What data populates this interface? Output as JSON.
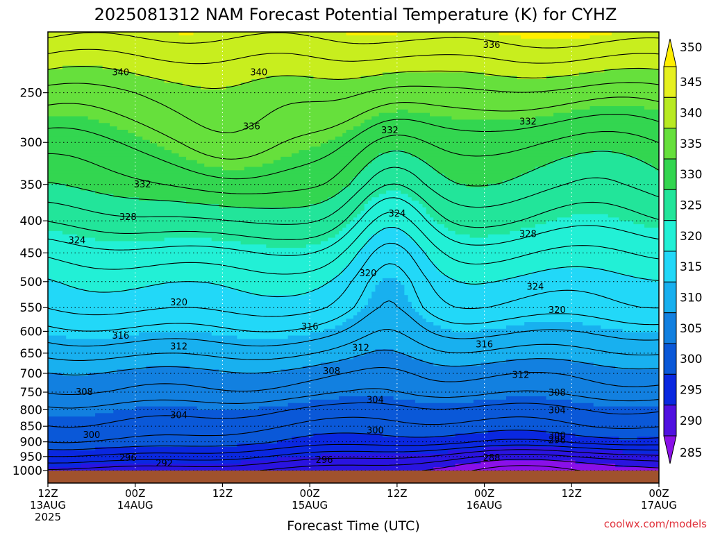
{
  "chart_data": {
    "type": "heatmap",
    "title": "2025081312 NAM Forecast Potential Temperature (K) for CYHZ",
    "xlabel": "Forecast Time (UTC)",
    "ylabel": "",
    "y_scale": "log-pressure",
    "ylim": [
      1000,
      200
    ],
    "y_ticks": [
      250,
      300,
      350,
      400,
      450,
      500,
      550,
      600,
      650,
      700,
      750,
      800,
      850,
      900,
      950,
      1000
    ],
    "x_ticks": [
      {
        "hours": 0,
        "line1": "12Z",
        "line2": "13AUG",
        "line3": "2025"
      },
      {
        "hours": 12,
        "line1": "00Z",
        "line2": "14AUG",
        "line3": ""
      },
      {
        "hours": 24,
        "line1": "12Z",
        "line2": "",
        "line3": ""
      },
      {
        "hours": 36,
        "line1": "00Z",
        "line2": "15AUG",
        "line3": ""
      },
      {
        "hours": 48,
        "line1": "12Z",
        "line2": "",
        "line3": ""
      },
      {
        "hours": 60,
        "line1": "00Z",
        "line2": "16AUG",
        "line3": ""
      },
      {
        "hours": 72,
        "line1": "12Z",
        "line2": "",
        "line3": ""
      },
      {
        "hours": 84,
        "line1": "00Z",
        "line2": "17AUG",
        "line3": ""
      }
    ],
    "xlim": [
      0,
      84
    ],
    "colorbar": {
      "levels": [
        350,
        345,
        340,
        335,
        330,
        325,
        320,
        315,
        310,
        305,
        300,
        295,
        290,
        285
      ],
      "colors": [
        "#ffee00",
        "#e6f020",
        "#b8ea22",
        "#66e03c",
        "#33d650",
        "#22e59a",
        "#22f0d6",
        "#22d8f8",
        "#18b0ef",
        "#1280e0",
        "#0a58d8",
        "#0a28e0",
        "#5010e0",
        "#8a10e8"
      ]
    },
    "fill_bands": [
      {
        "min": 345,
        "color": "#ffee00"
      },
      {
        "min": 340,
        "color": "#c8ee1e"
      },
      {
        "min": 335,
        "color": "#66e03c"
      },
      {
        "min": 330,
        "color": "#33d650"
      },
      {
        "min": 325,
        "color": "#22e59a"
      },
      {
        "min": 320,
        "color": "#22f0d6"
      },
      {
        "min": 315,
        "color": "#22d8f8"
      },
      {
        "min": 310,
        "color": "#18b0ef"
      },
      {
        "min": 305,
        "color": "#1280e0"
      },
      {
        "min": 300,
        "color": "#0a58d8"
      },
      {
        "min": 295,
        "color": "#0a28e0"
      },
      {
        "min": 290,
        "color": "#2a14e0"
      },
      {
        "min": 285,
        "color": "#8a10e8"
      }
    ],
    "contour_interval": 2,
    "theta_profile": [
      {
        "p": 1000,
        "theta": 292
      },
      {
        "p": 950,
        "theta": 296
      },
      {
        "p": 900,
        "theta": 300
      },
      {
        "p": 850,
        "theta": 302
      },
      {
        "p": 800,
        "theta": 304
      },
      {
        "p": 750,
        "theta": 307
      },
      {
        "p": 700,
        "theta": 309
      },
      {
        "p": 650,
        "theta": 312
      },
      {
        "p": 600,
        "theta": 315
      },
      {
        "p": 550,
        "theta": 318
      },
      {
        "p": 500,
        "theta": 320
      },
      {
        "p": 450,
        "theta": 323
      },
      {
        "p": 400,
        "theta": 327
      },
      {
        "p": 350,
        "theta": 331
      },
      {
        "p": 300,
        "theta": 334
      },
      {
        "p": 250,
        "theta": 338
      },
      {
        "p": 200,
        "theta": 345
      }
    ],
    "perturbations": [
      {
        "hours": 47,
        "p": 420,
        "amp": -6,
        "sx": 4,
        "sp": 0.28
      },
      {
        "hours": 25,
        "p": 300,
        "amp": 4,
        "sx": 6,
        "sp": 0.18
      },
      {
        "hours": 72,
        "p": 320,
        "amp": -3,
        "sx": 12,
        "sp": 0.2
      },
      {
        "hours": 70,
        "p": 980,
        "amp": -5,
        "sx": 14,
        "sp": 0.06
      },
      {
        "hours": 10,
        "p": 900,
        "amp": 1.5,
        "sx": 10,
        "sp": 0.1
      }
    ],
    "contour_labels": [
      {
        "hours": 10,
        "p": 232,
        "text": "340"
      },
      {
        "hours": 29,
        "p": 232,
        "text": "340"
      },
      {
        "hours": 61,
        "p": 210,
        "text": "336"
      },
      {
        "hours": 28,
        "p": 283,
        "text": "336"
      },
      {
        "hours": 47,
        "p": 287,
        "text": "332"
      },
      {
        "hours": 66,
        "p": 278,
        "text": "332"
      },
      {
        "hours": 13,
        "p": 350,
        "text": "332"
      },
      {
        "hours": 11,
        "p": 395,
        "text": "328"
      },
      {
        "hours": 48,
        "p": 390,
        "text": "324"
      },
      {
        "hours": 66,
        "p": 420,
        "text": "328"
      },
      {
        "hours": 4,
        "p": 430,
        "text": "324"
      },
      {
        "hours": 44,
        "p": 485,
        "text": "320"
      },
      {
        "hours": 67,
        "p": 510,
        "text": "324"
      },
      {
        "hours": 18,
        "p": 540,
        "text": "320"
      },
      {
        "hours": 70,
        "p": 555,
        "text": "320"
      },
      {
        "hours": 36,
        "p": 590,
        "text": "316"
      },
      {
        "hours": 10,
        "p": 610,
        "text": "316"
      },
      {
        "hours": 60,
        "p": 630,
        "text": "316"
      },
      {
        "hours": 18,
        "p": 635,
        "text": "312"
      },
      {
        "hours": 43,
        "p": 638,
        "text": "312"
      },
      {
        "hours": 65,
        "p": 705,
        "text": "312"
      },
      {
        "hours": 39,
        "p": 695,
        "text": "308"
      },
      {
        "hours": 5,
        "p": 750,
        "text": "308"
      },
      {
        "hours": 70,
        "p": 752,
        "text": "308"
      },
      {
        "hours": 45,
        "p": 772,
        "text": "304"
      },
      {
        "hours": 18,
        "p": 817,
        "text": "304"
      },
      {
        "hours": 70,
        "p": 802,
        "text": "304"
      },
      {
        "hours": 6,
        "p": 878,
        "text": "300"
      },
      {
        "hours": 45,
        "p": 864,
        "text": "300"
      },
      {
        "hours": 70,
        "p": 880,
        "text": "300"
      },
      {
        "hours": 70,
        "p": 895,
        "text": "296"
      },
      {
        "hours": 11,
        "p": 955,
        "text": "296"
      },
      {
        "hours": 38,
        "p": 962,
        "text": "296"
      },
      {
        "hours": 16,
        "p": 975,
        "text": "292"
      },
      {
        "hours": 61,
        "p": 955,
        "text": "288"
      }
    ],
    "ground_color": "#a0522d",
    "credit": "coolwx.com/models"
  }
}
